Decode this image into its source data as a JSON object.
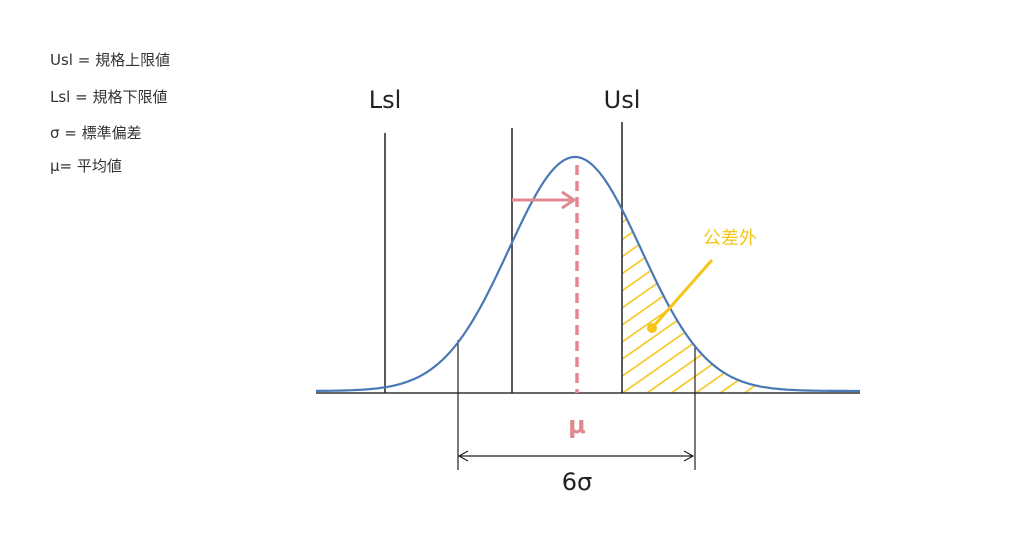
{
  "legend": [
    "Usl = 規格上限値",
    "Lsl = 規格下限値",
    "σ = 標準偏差",
    "μ= 平均値"
  ],
  "labels": {
    "lsl": "Lsl",
    "usl": "Usl",
    "mu": "μ",
    "six_sigma": "6σ",
    "out_of_tolerance": "公差外"
  }
}
